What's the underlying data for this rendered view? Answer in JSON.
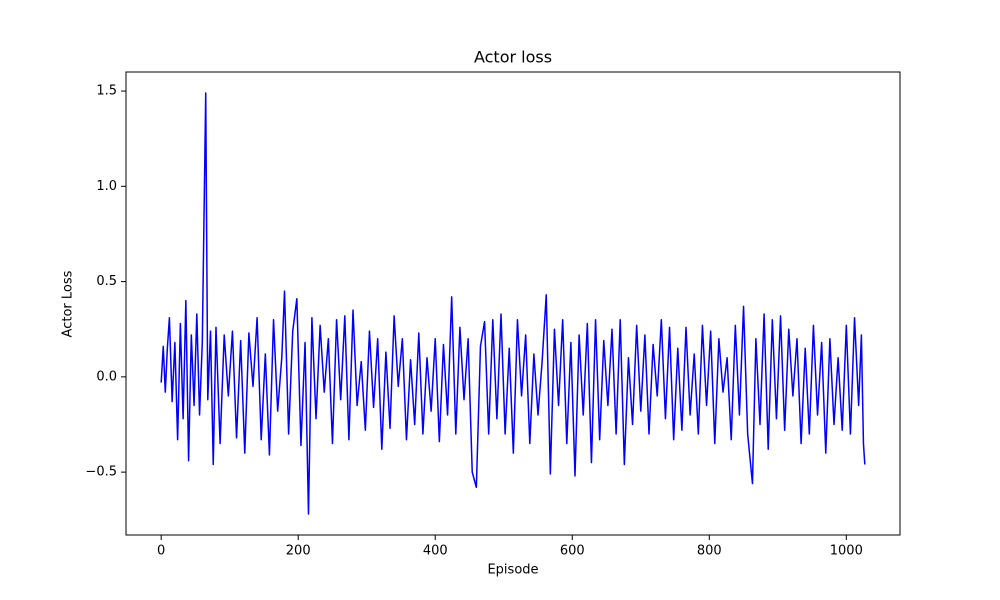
{
  "chart_data": {
    "type": "line",
    "title": "Actor loss",
    "xlabel": "Episode",
    "ylabel": "Actor Loss",
    "x": [
      0,
      3,
      6,
      9,
      12,
      16,
      20,
      24,
      28,
      32,
      36,
      40,
      44,
      48,
      52,
      56,
      60,
      65,
      68,
      72,
      76,
      80,
      86,
      92,
      98,
      104,
      110,
      116,
      122,
      128,
      134,
      140,
      146,
      152,
      158,
      164,
      170,
      176,
      180,
      186,
      192,
      198,
      204,
      210,
      215,
      220,
      226,
      232,
      238,
      244,
      250,
      256,
      262,
      268,
      274,
      280,
      286,
      292,
      298,
      304,
      310,
      316,
      322,
      328,
      334,
      340,
      346,
      352,
      358,
      364,
      370,
      376,
      382,
      388,
      394,
      400,
      406,
      412,
      418,
      424,
      430,
      436,
      442,
      448,
      454,
      460,
      466,
      472,
      478,
      484,
      490,
      496,
      502,
      508,
      514,
      520,
      526,
      532,
      538,
      544,
      550,
      556,
      562,
      568,
      574,
      580,
      586,
      592,
      598,
      604,
      610,
      616,
      622,
      628,
      634,
      640,
      646,
      652,
      658,
      664,
      670,
      676,
      682,
      688,
      694,
      700,
      706,
      712,
      718,
      724,
      730,
      736,
      742,
      748,
      754,
      760,
      766,
      772,
      778,
      784,
      790,
      796,
      802,
      808,
      814,
      820,
      826,
      832,
      838,
      844,
      850,
      856,
      863,
      868,
      874,
      880,
      886,
      892,
      898,
      904,
      910,
      916,
      922,
      928,
      934,
      940,
      946,
      952,
      958,
      964,
      970,
      976,
      982,
      988,
      994,
      1000,
      1006,
      1012,
      1018,
      1022,
      1025,
      1027
    ],
    "series": [
      {
        "name": "Actor Loss",
        "color": "#0000ff",
        "values": [
          -0.03,
          0.16,
          -0.08,
          0.15,
          0.31,
          -0.13,
          0.18,
          -0.33,
          0.28,
          -0.22,
          0.4,
          -0.44,
          0.22,
          -0.15,
          0.33,
          -0.2,
          0.18,
          1.49,
          -0.12,
          0.24,
          -0.46,
          0.26,
          -0.35,
          0.22,
          -0.1,
          0.24,
          -0.32,
          0.19,
          -0.4,
          0.23,
          -0.05,
          0.31,
          -0.33,
          0.12,
          -0.41,
          0.3,
          -0.18,
          0.1,
          0.45,
          -0.3,
          0.24,
          0.41,
          -0.36,
          0.18,
          -0.72,
          0.31,
          -0.22,
          0.27,
          -0.08,
          0.2,
          -0.35,
          0.3,
          -0.12,
          0.32,
          -0.33,
          0.35,
          -0.15,
          0.08,
          -0.28,
          0.24,
          -0.16,
          0.2,
          -0.38,
          0.13,
          -0.27,
          0.32,
          -0.05,
          0.2,
          -0.33,
          0.09,
          -0.25,
          0.23,
          -0.3,
          0.1,
          -0.18,
          0.2,
          -0.34,
          0.17,
          -0.2,
          0.42,
          -0.3,
          0.26,
          -0.12,
          0.2,
          -0.5,
          -0.58,
          0.16,
          0.29,
          -0.3,
          0.3,
          -0.22,
          0.33,
          -0.3,
          0.15,
          -0.4,
          0.3,
          -0.1,
          0.22,
          -0.35,
          0.12,
          -0.2,
          0.08,
          0.43,
          -0.51,
          0.25,
          -0.15,
          0.3,
          -0.35,
          0.18,
          -0.52,
          0.22,
          -0.2,
          0.28,
          -0.45,
          0.3,
          -0.33,
          0.19,
          -0.15,
          0.25,
          -0.3,
          0.3,
          -0.46,
          0.1,
          -0.25,
          0.27,
          -0.18,
          0.22,
          -0.3,
          0.17,
          -0.1,
          0.3,
          -0.22,
          0.26,
          -0.33,
          0.15,
          -0.28,
          0.26,
          -0.2,
          0.12,
          -0.3,
          0.27,
          -0.15,
          0.24,
          -0.35,
          0.2,
          -0.08,
          0.1,
          -0.33,
          0.27,
          -0.2,
          0.37,
          -0.3,
          -0.56,
          0.2,
          -0.25,
          0.33,
          -0.38,
          0.3,
          -0.22,
          0.32,
          -0.28,
          0.25,
          -0.1,
          0.2,
          -0.35,
          0.15,
          -0.3,
          0.27,
          -0.2,
          0.18,
          -0.4,
          0.2,
          -0.25,
          0.1,
          -0.28,
          0.27,
          -0.3,
          0.31,
          -0.15,
          0.22,
          -0.35,
          -0.46
        ]
      }
    ],
    "xlim": [
      -51.35,
      1078.35
    ],
    "ylim": [
      -0.83,
      1.6
    ],
    "xticks": [
      0,
      200,
      400,
      600,
      800,
      1000
    ],
    "yticks": [
      {
        "value": -0.5,
        "label": "−0.5"
      },
      {
        "value": 0,
        "label": "0.0"
      },
      {
        "value": 0.5,
        "label": "0.5"
      },
      {
        "value": 1,
        "label": "1.0"
      },
      {
        "value": 1.5,
        "label": "1.5"
      }
    ],
    "grid": false
  }
}
